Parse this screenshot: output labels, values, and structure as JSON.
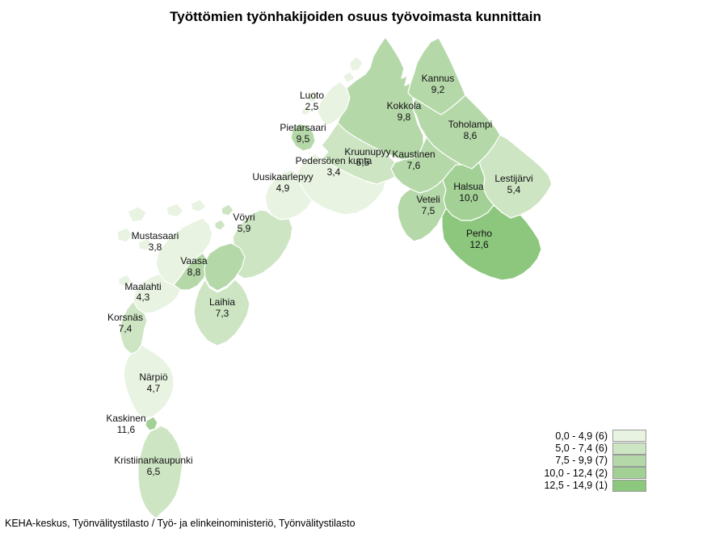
{
  "title": "Työttömien työnhakijoiden osuus työvoimasta kunnittain",
  "footer": "KEHA-keskus, Työnvälitystilasto / Työ- ja elinkeinoministeriö, Työnvälitystilasto",
  "legend": {
    "classes": [
      {
        "label": "0,0 - 4,9 (6)",
        "color": "#e9f3e2"
      },
      {
        "label": "5,0 - 7,4 (6)",
        "color": "#cde5c3"
      },
      {
        "label": "7,5 - 9,9 (7)",
        "color": "#b5d8a9"
      },
      {
        "label": "10,0 - 12,4 (2)",
        "color": "#a2d095"
      },
      {
        "label": "12,5 - 14,9 (1)",
        "color": "#8cc77d"
      }
    ]
  },
  "map": {
    "municipalities": [
      {
        "id": "kokkola",
        "name": "Kokkola",
        "value": "9,8",
        "class": 2
      },
      {
        "id": "kannus",
        "name": "Kannus",
        "value": "9,2",
        "class": 2
      },
      {
        "id": "toholampi",
        "name": "Toholampi",
        "value": "8,6",
        "class": 2
      },
      {
        "id": "lestijarvi",
        "name": "Lestijärvi",
        "value": "5,4",
        "class": 1
      },
      {
        "id": "halsua",
        "name": "Halsua",
        "value": "10,0",
        "class": 3
      },
      {
        "id": "kaustinen",
        "name": "Kaustinen",
        "value": "7,6",
        "class": 2
      },
      {
        "id": "veteli",
        "name": "Veteli",
        "value": "7,5",
        "class": 2
      },
      {
        "id": "perho",
        "name": "Perho",
        "value": "12,6",
        "class": 4
      },
      {
        "id": "kruunupyy",
        "name": "Kruunupyy",
        "value": "5,5",
        "class": 1
      },
      {
        "id": "pedersoren",
        "name": "Pedersören kunta",
        "value": "3,4",
        "class": 0
      },
      {
        "id": "uusikaarlepyy",
        "name": "Uusikaarlepyy",
        "value": "4,9",
        "class": 0
      },
      {
        "id": "voyri",
        "name": "Vöyri",
        "value": "5,9",
        "class": 1
      },
      {
        "id": "mustasaari",
        "name": "Mustasaari",
        "value": "3,8",
        "class": 0
      },
      {
        "id": "vaasa",
        "name": "Vaasa",
        "value": "8,8",
        "class": 2
      },
      {
        "id": "laihia",
        "name": "Laihia",
        "value": "7,3",
        "class": 1
      },
      {
        "id": "maalahti",
        "name": "Maalahti",
        "value": "4,3",
        "class": 0
      },
      {
        "id": "korsnas",
        "name": "Korsnäs",
        "value": "7,4",
        "class": 1
      },
      {
        "id": "narpio",
        "name": "Närpiö",
        "value": "4,7",
        "class": 0
      },
      {
        "id": "kristiinankaupunki",
        "name": "Kristiinankaupunki",
        "value": "6,5",
        "class": 1
      },
      {
        "id": "kaskinen",
        "name": "Kaskinen",
        "value": "11,6",
        "class": 3
      },
      {
        "id": "pietarsaari",
        "name": "Pietarsaari",
        "value": "9,5",
        "class": 2
      },
      {
        "id": "luoto",
        "name": "Luoto",
        "value": "2,5",
        "class": 0
      }
    ]
  }
}
